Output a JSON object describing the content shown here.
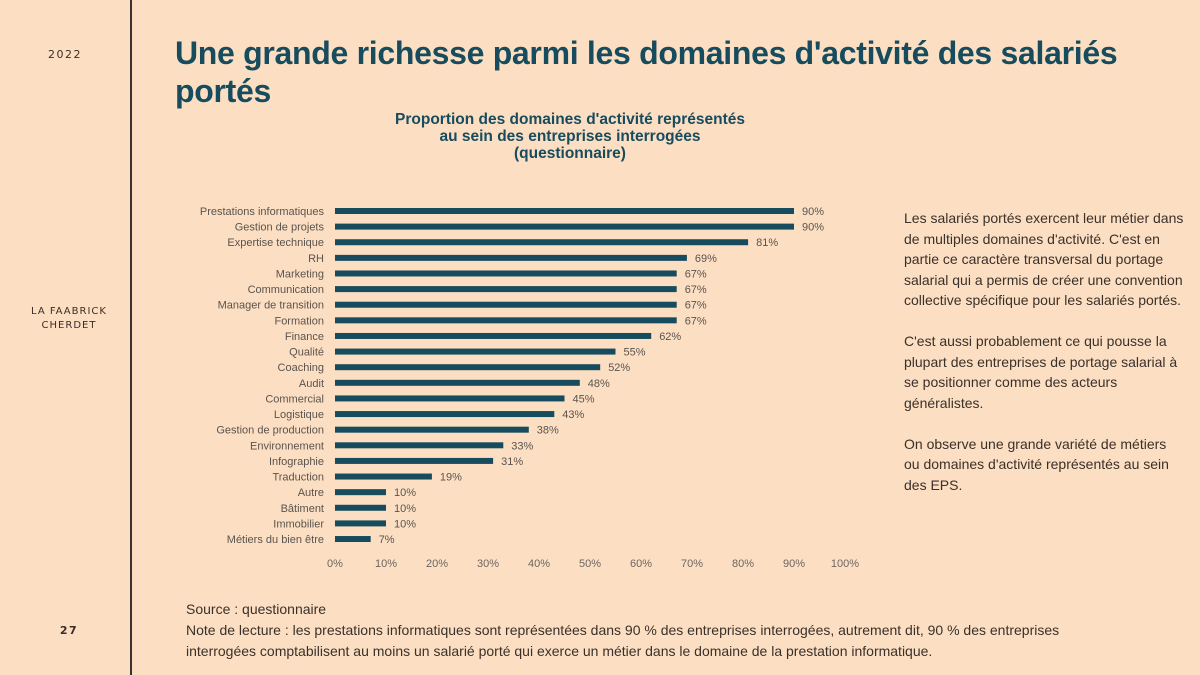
{
  "sidebar": {
    "year": "2022",
    "brand_line1": "LA FAABRICK",
    "brand_line2": "CHERDET",
    "page_number": "27"
  },
  "header": {
    "title": "Une grande richesse parmi les domaines d'activité des salariés portés"
  },
  "colors": {
    "background": "#fcdfc3",
    "accent": "#174b5e",
    "bar": "#174b5e",
    "text": "#3a302a"
  },
  "chart_data": {
    "type": "bar",
    "orientation": "horizontal",
    "title_lines": [
      "Proportion des domaines d'activité représentés",
      "au sein des entreprises interrogées",
      "(questionnaire)"
    ],
    "categories": [
      "Prestations informatiques",
      "Gestion de projets",
      "Expertise technique",
      "RH",
      "Marketing",
      "Communication",
      "Manager de transition",
      "Formation",
      "Finance",
      "Qualité",
      "Coaching",
      "Audit",
      "Commercial",
      "Logistique",
      "Gestion de production",
      "Environnement",
      "Infographie",
      "Traduction",
      "Autre",
      "Bâtiment",
      "Immobilier",
      "Métiers du bien être"
    ],
    "values": [
      90,
      90,
      81,
      69,
      67,
      67,
      67,
      67,
      62,
      55,
      52,
      48,
      45,
      43,
      38,
      33,
      31,
      19,
      10,
      10,
      10,
      7
    ],
    "value_labels": [
      "90%",
      "90%",
      "81%",
      "69%",
      "67%",
      "67%",
      "67%",
      "67%",
      "62%",
      "55%",
      "52%",
      "48%",
      "45%",
      "43%",
      "38%",
      "33%",
      "31%",
      "19%",
      "10%",
      "10%",
      "10%",
      "7%"
    ],
    "xlim": [
      0,
      100
    ],
    "x_ticks": [
      "0%",
      "10%",
      "20%",
      "30%",
      "40%",
      "50%",
      "60%",
      "70%",
      "80%",
      "90%",
      "100%"
    ],
    "xlabel": "",
    "ylabel": "",
    "grid": false,
    "legend": "none"
  },
  "commentary": {
    "paragraphs": [
      "Les salariés portés exercent leur métier dans de multiples domaines d'activité. C'est en partie ce caractère transversal du portage salarial qui a permis de créer une convention collective spécifique pour les salariés portés.",
      "C'est aussi probablement ce qui pousse la plupart des entreprises de portage salarial à se positionner comme des acteurs généralistes.",
      "On observe une grande variété de métiers ou domaines d'activité représentés au sein des EPS."
    ]
  },
  "footer": {
    "source": "Source : questionnaire",
    "note": "Note de lecture : les prestations informatiques sont représentées dans 90 % des entreprises interrogées, autrement dit, 90 % des entreprises interrogées comptabilisent au moins un salarié porté qui exerce un métier dans le domaine de la prestation informatique."
  }
}
